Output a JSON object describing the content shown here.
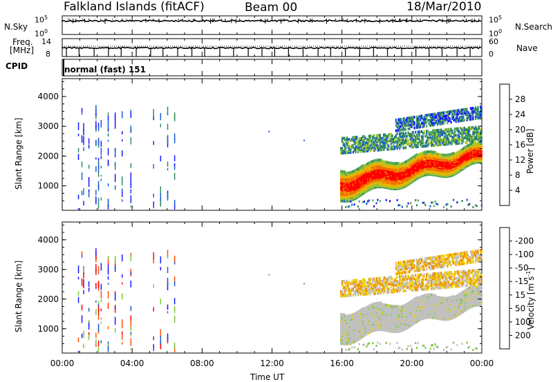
{
  "header": {
    "station": "Falkland Islands (fitACF)",
    "beam": "Beam 00",
    "date": "18/Mar/2010"
  },
  "top_panels": {
    "nsky_label": "N.Sky",
    "nsearch_label": "N.Search",
    "nsky_top": "10^5",
    "nsky_bottom": "10^0",
    "freq_label_1": "Freq.",
    "freq_label_2": "[MHz]",
    "freq_top": "14",
    "freq_bottom": "8",
    "nave_label": "Nave",
    "nave_top": "60",
    "nave_bottom": "0",
    "cpid_label": "CPID",
    "cpid_text": "normal (fast) 151"
  },
  "colors": {
    "power": [
      "#1818ff",
      "#1a5ad8",
      "#2e8a5a",
      "#5aa85a",
      "#a8c828",
      "#f0b000",
      "#f07000",
      "#ff0000"
    ],
    "velocity": [
      "#1818ff",
      "#1a5ad8",
      "#2e8a5a",
      "#7ac838",
      "#c0c0c0",
      "#f0d000",
      "#f09000",
      "#ff5000",
      "#ff0000"
    ]
  },
  "chart_data": [
    {
      "type": "heatmap",
      "quantity": "Power",
      "ylabel": "Slant Range [km]",
      "xlabel": "Time UT",
      "yticks": [
        1000,
        2000,
        3000,
        4000
      ],
      "ylim": [
        180,
        4600
      ],
      "xlim": [
        0,
        24
      ],
      "xticks": [
        "00:00",
        "04:00",
        "08:00",
        "12:00",
        "16:00",
        "20:00",
        "00:00"
      ],
      "colorbar_label": "Power [dB]",
      "colorbar_ticks": [
        "4",
        "8",
        "12",
        "16",
        "20",
        "24",
        "28"
      ],
      "bands": [
        {
          "t_start": 15.9,
          "t_end": 24.0,
          "r_start_center": 1000,
          "r_end_center": 2000,
          "width": 500,
          "level": "strong"
        },
        {
          "t_start": 15.9,
          "t_end": 24.0,
          "r_start_center": 2300,
          "r_end_center": 2700,
          "width": 250,
          "level": "weak"
        },
        {
          "t_start": 19.0,
          "t_end": 24.0,
          "r_start_center": 3000,
          "r_end_center": 3450,
          "width": 200,
          "level": "weak"
        }
      ]
    },
    {
      "type": "heatmap",
      "quantity": "Velocity",
      "ylabel": "Slant Range [km]",
      "xlabel": "Time UT",
      "yticks": [
        1000,
        2000,
        3000,
        4000
      ],
      "ylim": [
        180,
        4600
      ],
      "xlim": [
        0,
        24
      ],
      "xticks": [
        "00:00",
        "04:00",
        "08:00",
        "12:00",
        "16:00",
        "20:00",
        "00:00"
      ],
      "colorbar_label": "Velocity [m s^-1]",
      "colorbar_ticks": [
        "200",
        "100",
        "50",
        "15",
        "-15",
        "-50",
        "-100",
        "-200"
      ]
    }
  ]
}
